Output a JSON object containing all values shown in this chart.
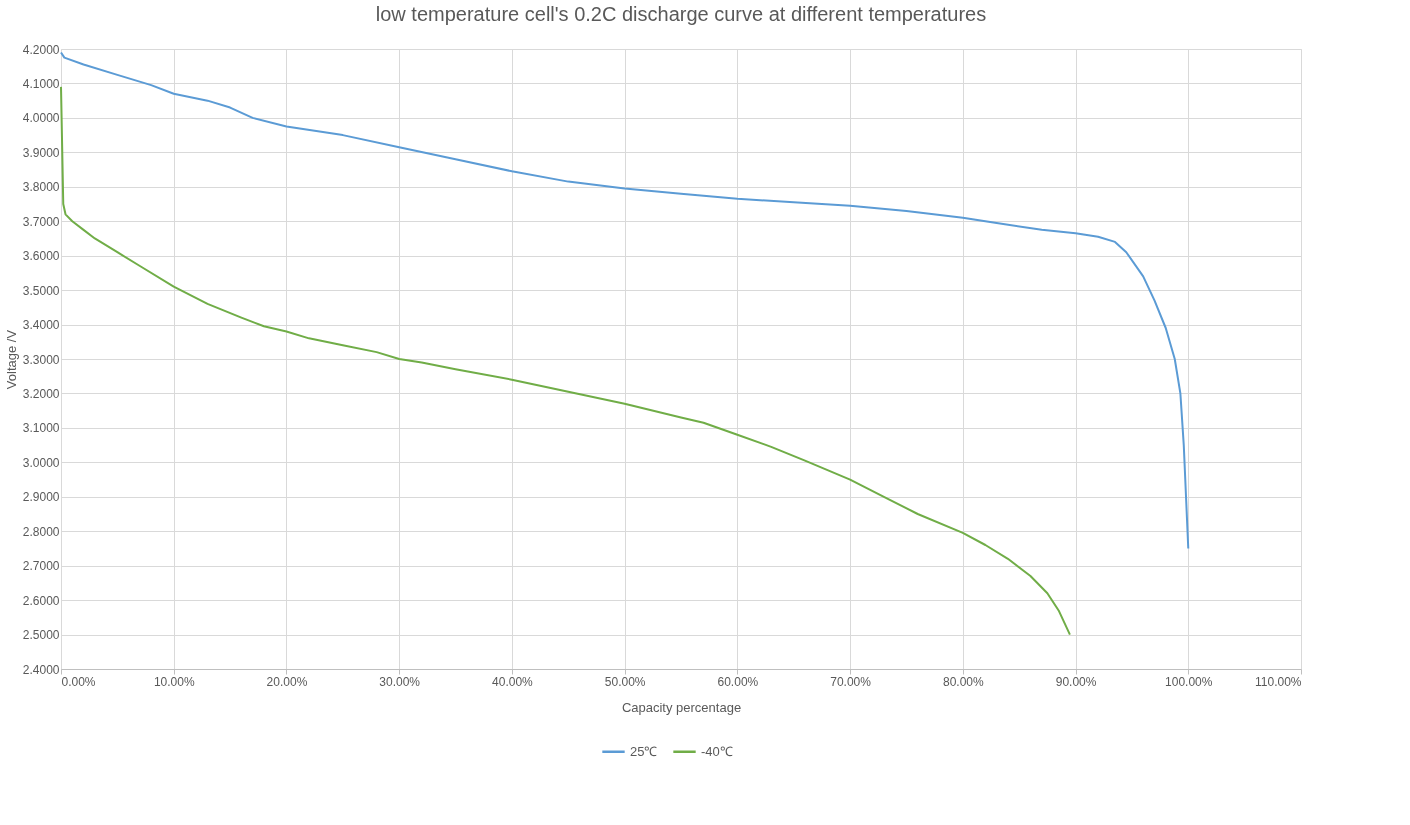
{
  "chart_data": {
    "type": "line",
    "title": "low temperature cell's 0.2C discharge curve at different temperatures",
    "xlabel": "Capacity percentage",
    "ylabel": "Voltage /V",
    "xlim": [
      0,
      110
    ],
    "xticks": [
      {
        "value": 0,
        "label": "0.00%"
      },
      {
        "value": 10,
        "label": "10.00%"
      },
      {
        "value": 20,
        "label": "20.00%"
      },
      {
        "value": 30,
        "label": "30.00%"
      },
      {
        "value": 40,
        "label": "40.00%"
      },
      {
        "value": 50,
        "label": "50.00%"
      },
      {
        "value": 60,
        "label": "60.00%"
      },
      {
        "value": 70,
        "label": "70.00%"
      },
      {
        "value": 80,
        "label": "80.00%"
      },
      {
        "value": 90,
        "label": "90.00%"
      },
      {
        "value": 100,
        "label": "100.00%"
      },
      {
        "value": 110,
        "label": "110.00%"
      }
    ],
    "ylim": [
      2.4,
      4.2
    ],
    "yticks": [
      {
        "value": 2.4,
        "label": "2.4000"
      },
      {
        "value": 2.5,
        "label": "2.5000"
      },
      {
        "value": 2.6,
        "label": "2.6000"
      },
      {
        "value": 2.7,
        "label": "2.7000"
      },
      {
        "value": 2.8,
        "label": "2.8000"
      },
      {
        "value": 2.9,
        "label": "2.9000"
      },
      {
        "value": 3.0,
        "label": "3.0000"
      },
      {
        "value": 3.1,
        "label": "3.1000"
      },
      {
        "value": 3.2,
        "label": "3.2000"
      },
      {
        "value": 3.3,
        "label": "3.3000"
      },
      {
        "value": 3.4,
        "label": "3.4000"
      },
      {
        "value": 3.5,
        "label": "3.5000"
      },
      {
        "value": 3.6,
        "label": "3.6000"
      },
      {
        "value": 3.7,
        "label": "3.7000"
      },
      {
        "value": 3.8,
        "label": "3.8000"
      },
      {
        "value": 3.9,
        "label": "3.9000"
      },
      {
        "value": 4.0,
        "label": "4.0000"
      },
      {
        "value": 4.1,
        "label": "4.1000"
      },
      {
        "value": 4.2,
        "label": "4.2000"
      }
    ],
    "grid": true,
    "legend": "bottom",
    "marker": "none",
    "line_style": "solid",
    "series": [
      {
        "name": "25℃",
        "color": "#5b9bd5",
        "x": [
          0,
          0.3,
          2,
          5,
          8,
          10,
          13,
          15,
          17,
          20,
          25,
          30,
          35,
          40,
          45,
          50,
          55,
          60,
          65,
          70,
          75,
          80,
          83,
          87,
          90,
          92,
          93.5,
          94.5,
          96,
          97,
          98,
          98.8,
          99.3,
          99.6,
          99.8,
          100
        ],
        "values": [
          4.19,
          4.175,
          4.155,
          4.125,
          4.095,
          4.07,
          4.05,
          4.03,
          4.0,
          3.975,
          3.95,
          3.915,
          3.88,
          3.845,
          3.815,
          3.795,
          3.78,
          3.765,
          3.755,
          3.745,
          3.73,
          3.71,
          3.695,
          3.675,
          3.665,
          3.655,
          3.64,
          3.61,
          3.54,
          3.47,
          3.39,
          3.3,
          3.2,
          3.05,
          2.9,
          2.75
        ]
      },
      {
        "name": "-40℃",
        "color": "#70ad47",
        "x": [
          0,
          0.2,
          0.4,
          1,
          2,
          3,
          5,
          7,
          10,
          13,
          16,
          18,
          20,
          22,
          25,
          28,
          30,
          32,
          35,
          40,
          45,
          50,
          55,
          57,
          60,
          63,
          66,
          70,
          73,
          76,
          80,
          82,
          84,
          86,
          87.5,
          88.5,
          89.5
        ],
        "values": [
          4.09,
          3.75,
          3.72,
          3.7,
          3.675,
          3.65,
          3.61,
          3.57,
          3.51,
          3.46,
          3.42,
          3.395,
          3.38,
          3.36,
          3.34,
          3.32,
          3.3,
          3.29,
          3.27,
          3.24,
          3.205,
          3.17,
          3.13,
          3.115,
          3.08,
          3.045,
          3.005,
          2.95,
          2.9,
          2.85,
          2.795,
          2.76,
          2.72,
          2.67,
          2.62,
          2.57,
          2.5
        ]
      }
    ]
  }
}
